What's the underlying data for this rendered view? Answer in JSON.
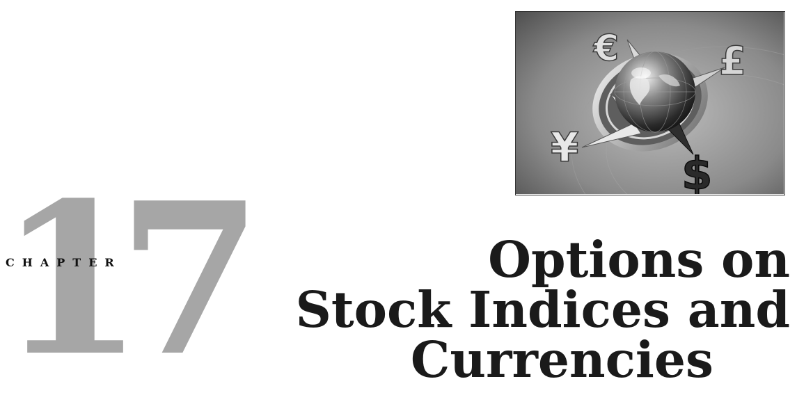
{
  "chapter": {
    "number": "17",
    "word": "CHAPTER",
    "title_lines": [
      "Options on",
      "Stock Indices and",
      "Currencies"
    ]
  },
  "image": {
    "currency_symbols": [
      "€",
      "£",
      "¥",
      "$"
    ]
  }
}
